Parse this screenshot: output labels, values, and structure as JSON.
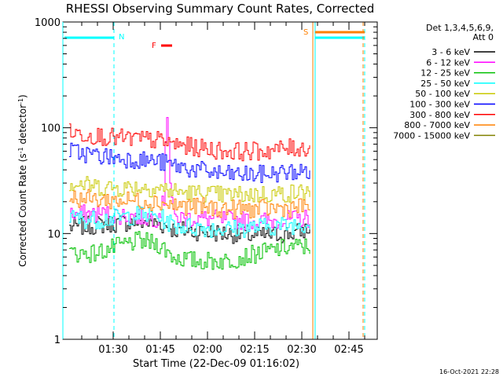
{
  "chart_data": {
    "type": "line",
    "title": "RHESSI Observing Summary Count Rates, Corrected",
    "xlabel": "Start Time (22-Dec-09 01:16:02)",
    "ylabel_main": "Corrected Count Rate (s",
    "ylabel_sup1": "-1",
    "ylabel_mid": " detector",
    "ylabel_sup2": "-1",
    "ylabel_end": ")",
    "yscale": "log",
    "ylim": [
      1,
      1000
    ],
    "xlim_minutes": [
      -2,
      98
    ],
    "xticks": [
      {
        "minute": 14,
        "label": "01:30"
      },
      {
        "minute": 29,
        "label": "01:45"
      },
      {
        "minute": 44,
        "label": "02:00"
      },
      {
        "minute": 59,
        "label": "02:15"
      },
      {
        "minute": 74,
        "label": "02:30"
      },
      {
        "minute": 89,
        "label": "02:45"
      }
    ],
    "yticks": [
      {
        "value": 1,
        "label": "1"
      },
      {
        "value": 10,
        "label": "10"
      },
      {
        "value": 100,
        "label": "100"
      },
      {
        "value": 1000,
        "label": "1000"
      }
    ],
    "legend": {
      "header1": "Det 1,3,4,5,6,9,",
      "header2": "Att 0",
      "placement": "right"
    },
    "series": [
      {
        "name": "3 - 6 keV",
        "color": "#000000",
        "x": [
          0,
          8,
          15,
          22,
          28,
          33,
          40,
          50,
          60,
          70,
          76.5
        ],
        "y": [
          11.5,
          12,
          12.5,
          13,
          12.5,
          11,
          10.5,
          10,
          9.5,
          10,
          11
        ]
      },
      {
        "name": "6 - 12 keV",
        "color": "#ff00ff",
        "x": [
          0,
          8,
          15,
          22,
          28,
          30,
          31,
          32,
          33,
          40,
          50,
          60,
          70,
          76.5
        ],
        "y": [
          15,
          15.5,
          15,
          14.5,
          14,
          20,
          125,
          30,
          14,
          14,
          13.5,
          13,
          13.5,
          14
        ]
      },
      {
        "name": "12 - 25 keV",
        "color": "#00c000",
        "x": [
          0,
          8,
          15,
          22,
          28,
          33,
          40,
          50,
          60,
          70,
          76.5
        ],
        "y": [
          6.5,
          6.5,
          7.5,
          8.5,
          8,
          6,
          5.5,
          5.5,
          6.5,
          7.5,
          7.5
        ]
      },
      {
        "name": "25 - 50 keV",
        "color": "#00ffff",
        "x": [
          0,
          8,
          15,
          22,
          28,
          33,
          40,
          50,
          60,
          70,
          76.5
        ],
        "y": [
          14,
          13.5,
          14,
          15,
          14.5,
          12,
          11.5,
          11,
          11.5,
          12,
          12.5
        ]
      },
      {
        "name": "50 - 100 keV",
        "color": "#c8c800",
        "x": [
          0,
          8,
          15,
          22,
          28,
          33,
          40,
          50,
          60,
          70,
          76.5
        ],
        "y": [
          30,
          28,
          27,
          27.5,
          27,
          25,
          24,
          23,
          23.5,
          24,
          25
        ]
      },
      {
        "name": "100 - 300 keV",
        "color": "#0000ff",
        "x": [
          0,
          8,
          15,
          22,
          28,
          33,
          40,
          50,
          60,
          70,
          76.5
        ],
        "y": [
          60,
          55,
          52,
          50,
          48,
          44,
          40,
          36,
          36,
          38,
          39
        ]
      },
      {
        "name": "300 - 800 keV",
        "color": "#ff0000",
        "x": [
          0,
          8,
          15,
          22,
          28,
          33,
          40,
          50,
          60,
          70,
          76.5
        ],
        "y": [
          90,
          85,
          80,
          78,
          76,
          70,
          65,
          60,
          60,
          64,
          65
        ]
      },
      {
        "name": "800 - 7000 keV",
        "color": "#ff8000",
        "x": [
          0,
          8,
          15,
          22,
          28,
          33,
          40,
          50,
          60,
          70,
          76.5
        ],
        "y": [
          22,
          21,
          20.5,
          20.5,
          20,
          18.5,
          18,
          17,
          17,
          17.5,
          18
        ]
      },
      {
        "name": "7000 - 15000 keV",
        "color": "#808000",
        "x": [],
        "y": []
      }
    ],
    "markers": {
      "night": {
        "label": "N",
        "color": "#00ffff"
      },
      "flare": {
        "label": "F",
        "color": "#ff0000"
      },
      "saa": {
        "label": "S",
        "color": "#ff8000"
      }
    },
    "timestamp": "16-Oct-2021 22:28"
  }
}
